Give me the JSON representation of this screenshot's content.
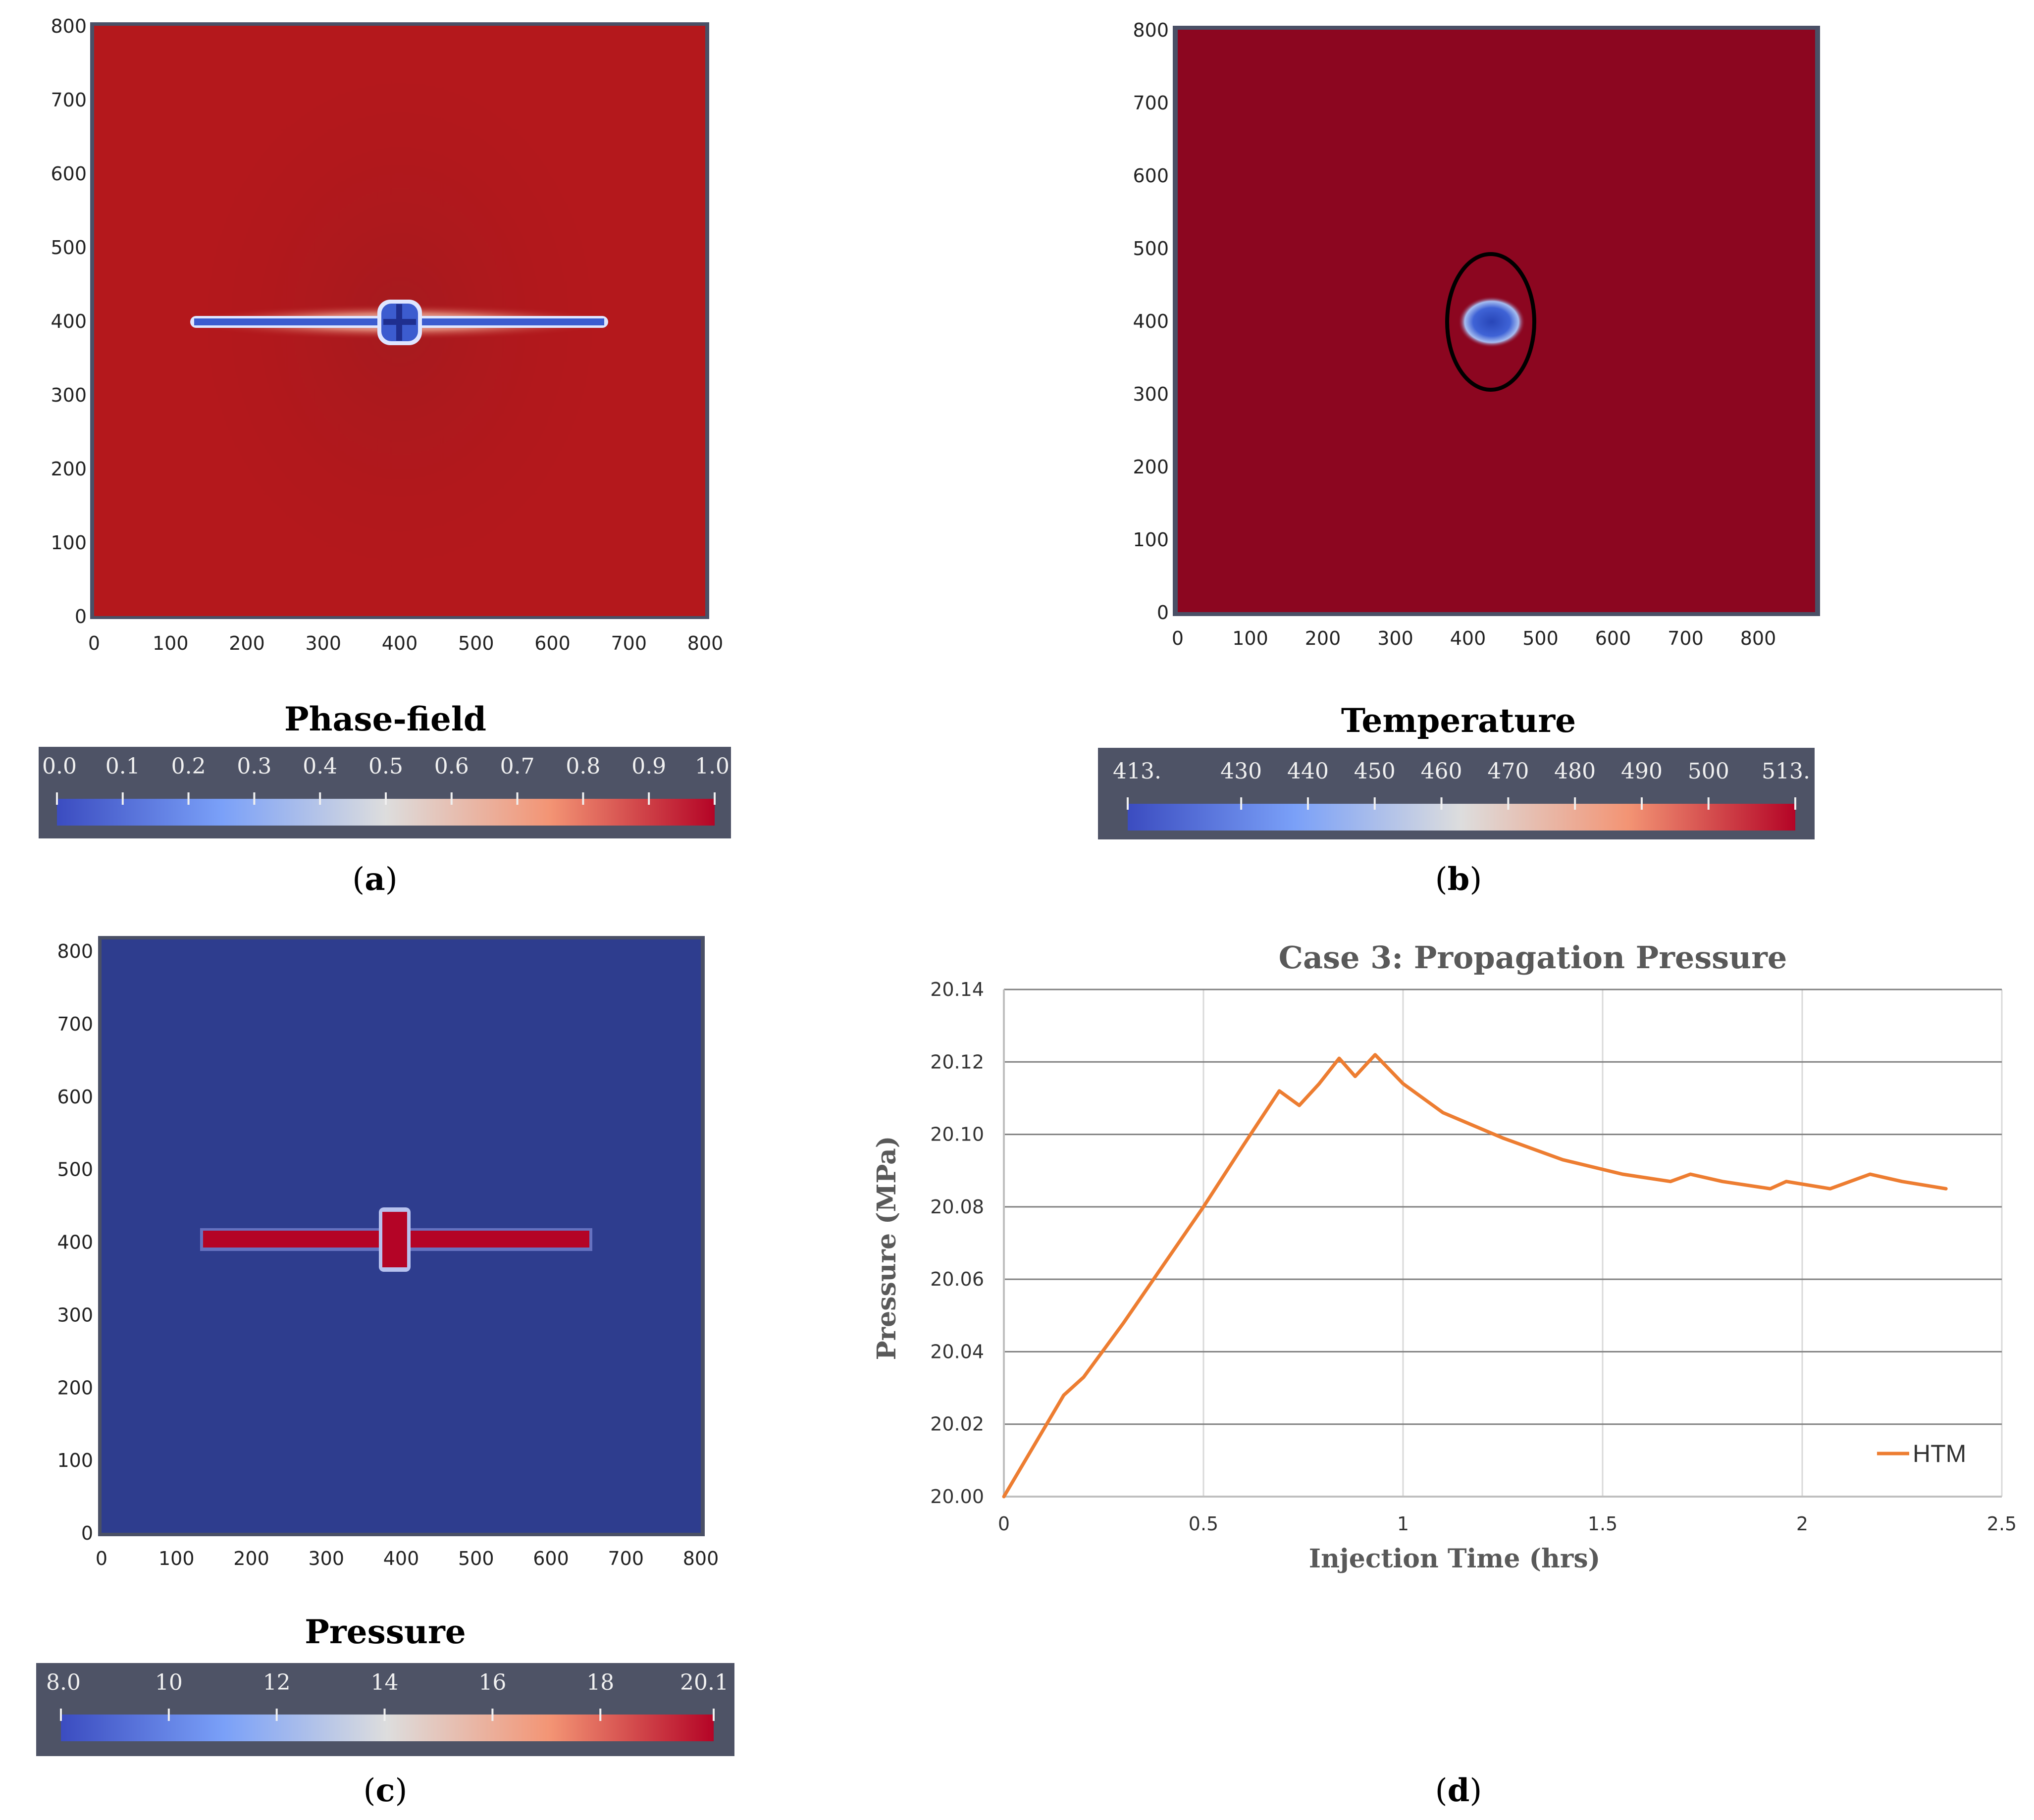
{
  "colors": {
    "high_red": "#8c0620",
    "field_red": "#b4181c",
    "low_blue": "#2e3d8e",
    "frame": "#4a5066",
    "colorbar_bg": "#4e5366",
    "line": "#ed7d31",
    "grid": "#d9d9d9",
    "hgrid": "#808080"
  },
  "panels": {
    "a": {
      "title": "Phase-field",
      "caption_open": "(",
      "caption_letter": "a",
      "caption_close": ")",
      "x_ticks": [
        "0",
        "100",
        "200",
        "300",
        "400",
        "500",
        "600",
        "700",
        "800"
      ],
      "y_ticks": [
        "0",
        "100",
        "200",
        "300",
        "400",
        "500",
        "600",
        "700",
        "800"
      ],
      "colorbar_ticks": [
        "0.0",
        "0.1",
        "0.2",
        "0.3",
        "0.4",
        "0.5",
        "0.6",
        "0.7",
        "0.8",
        "0.9",
        "1.0"
      ],
      "colorbar_min": 0.0,
      "colorbar_max": 1.0,
      "crack": {
        "x_start": 130,
        "x_end": 655,
        "y": 400,
        "junction_x": 395
      }
    },
    "b": {
      "title": "Temperature",
      "caption_open": "(",
      "caption_letter": "b",
      "caption_close": ")",
      "x_ticks": [
        "0",
        "100",
        "200",
        "300",
        "400",
        "500",
        "600",
        "700",
        "800"
      ],
      "y_ticks": [
        "0",
        "100",
        "200",
        "300",
        "400",
        "500",
        "600",
        "700",
        "800"
      ],
      "colorbar_ticks": [
        "413.",
        "430",
        "440",
        "450",
        "460",
        "470",
        "480",
        "490",
        "500",
        "513."
      ],
      "colorbar_values": [
        413,
        430,
        440,
        450,
        460,
        470,
        480,
        490,
        500,
        513
      ],
      "colorbar_min": 413,
      "colorbar_max": 513,
      "cold_spot": {
        "x": 425,
        "y": 395
      }
    },
    "c": {
      "title": "Pressure",
      "caption_open": "(",
      "caption_letter": "c",
      "caption_close": ")",
      "x_ticks": [
        "0",
        "100",
        "200",
        "300",
        "400",
        "500",
        "600",
        "700",
        "800"
      ],
      "y_ticks": [
        "0",
        "100",
        "200",
        "300",
        "400",
        "500",
        "600",
        "700",
        "800"
      ],
      "colorbar_ticks": [
        "8.0",
        "10",
        "12",
        "14",
        "16",
        "18",
        "20.1"
      ],
      "colorbar_values": [
        8.0,
        10,
        12,
        14,
        16,
        18,
        20.1
      ],
      "colorbar_min": 8.0,
      "colorbar_max": 20.1,
      "crack": {
        "x_start": 140,
        "x_end": 650,
        "y": 410,
        "junction_x": 395
      }
    },
    "d": {
      "caption_open": "(",
      "caption_letter": "d",
      "caption_close": ")"
    }
  },
  "chart_data": {
    "type": "line",
    "title": "Case 3: Propagation Pressure",
    "xlabel": "Injection Time (hrs)",
    "ylabel": "Pressure (MPa)",
    "xlim": [
      0,
      2.5
    ],
    "ylim": [
      20.0,
      20.14
    ],
    "x_ticks": [
      0,
      0.5,
      1,
      1.5,
      2,
      2.5
    ],
    "x_tick_labels": [
      "0",
      "0.5",
      "1",
      "1.5",
      "2",
      "2.5"
    ],
    "y_ticks": [
      20.0,
      20.02,
      20.04,
      20.06,
      20.08,
      20.1,
      20.12,
      20.14
    ],
    "y_tick_labels": [
      "20.00",
      "20.02",
      "20.04",
      "20.06",
      "20.08",
      "20.10",
      "20.12",
      "20.14"
    ],
    "grid": true,
    "legend_position": "bottom-right",
    "series": [
      {
        "name": "HTM",
        "x": [
          0,
          0.15,
          0.2,
          0.3,
          0.4,
          0.5,
          0.6,
          0.69,
          0.74,
          0.79,
          0.84,
          0.88,
          0.93,
          1.0,
          1.1,
          1.25,
          1.4,
          1.55,
          1.67,
          1.72,
          1.8,
          1.92,
          1.96,
          2.07,
          2.17,
          2.25,
          2.36
        ],
        "y": [
          20.0,
          20.028,
          20.033,
          20.048,
          20.064,
          20.08,
          20.097,
          20.112,
          20.108,
          20.114,
          20.121,
          20.116,
          20.122,
          20.114,
          20.106,
          20.099,
          20.093,
          20.089,
          20.087,
          20.089,
          20.087,
          20.085,
          20.087,
          20.085,
          20.089,
          20.087,
          20.085
        ]
      }
    ]
  }
}
